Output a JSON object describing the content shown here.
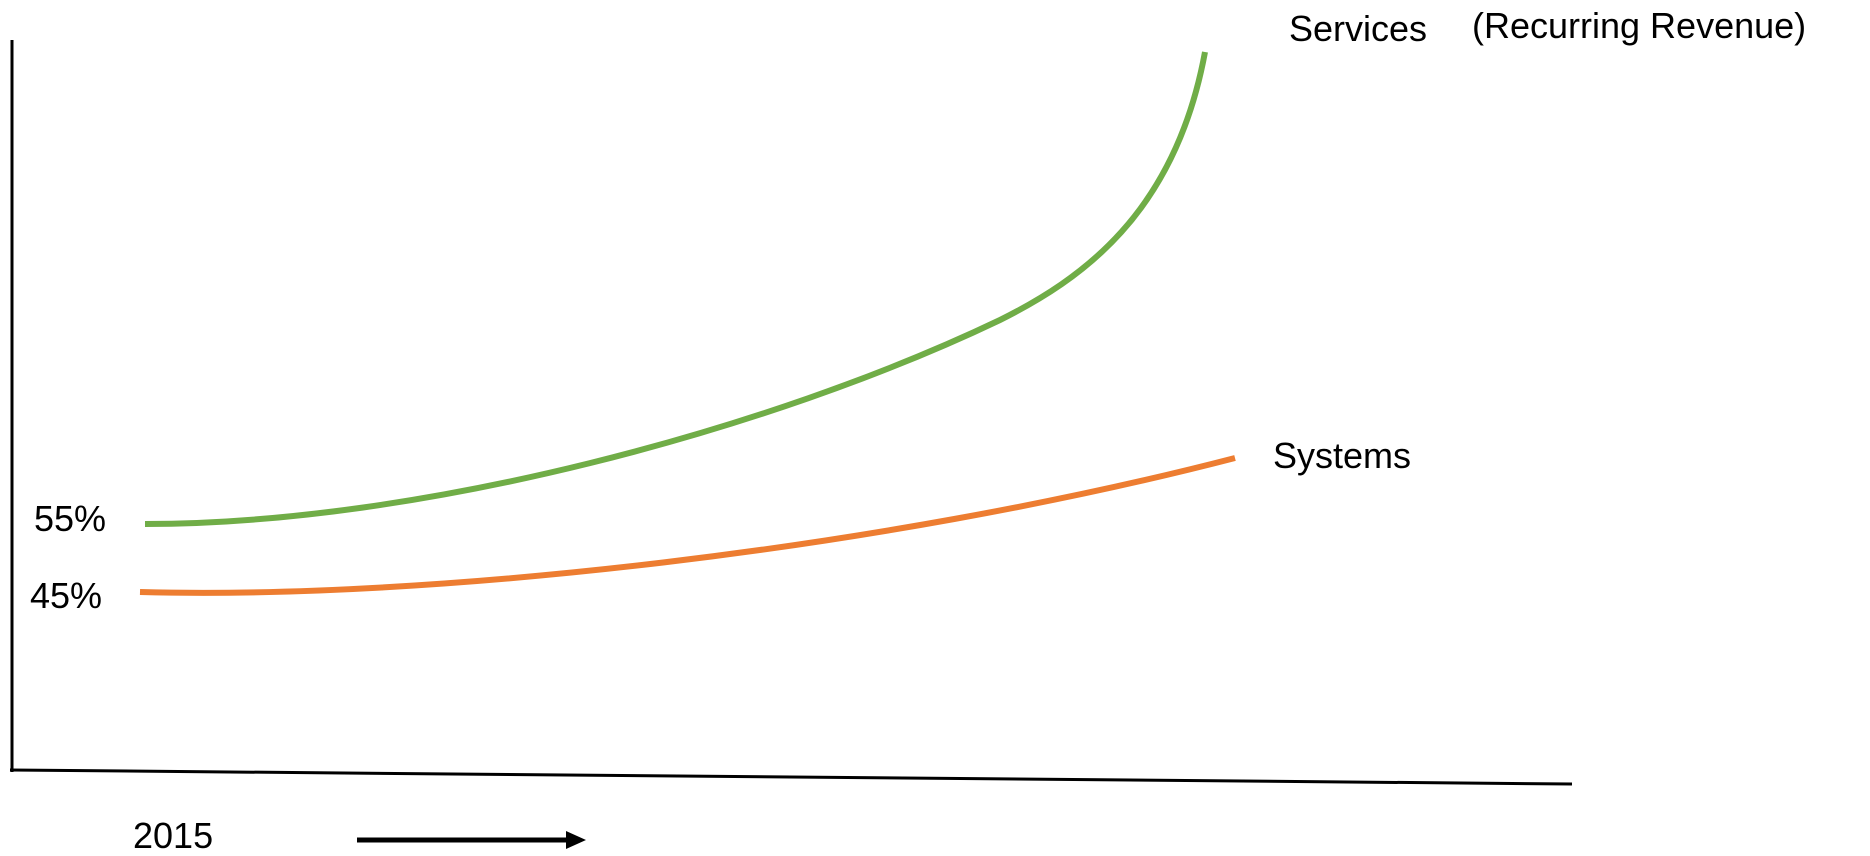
{
  "chart_data": {
    "type": "line",
    "title": "",
    "xlabel": "",
    "ylabel": "",
    "x_tick_labels": [
      "2015"
    ],
    "series": [
      {
        "name": "Services",
        "label": "Services",
        "annotation": "(Recurring Revenue)",
        "start_label": "55%",
        "start_value": 55,
        "color": "#70ad47"
      },
      {
        "name": "Systems",
        "label": "Systems",
        "start_label": "45%",
        "start_value": 45,
        "color": "#ed7d31"
      }
    ],
    "grid": false,
    "axes_color": "#000000",
    "direction_arrow": "right"
  }
}
